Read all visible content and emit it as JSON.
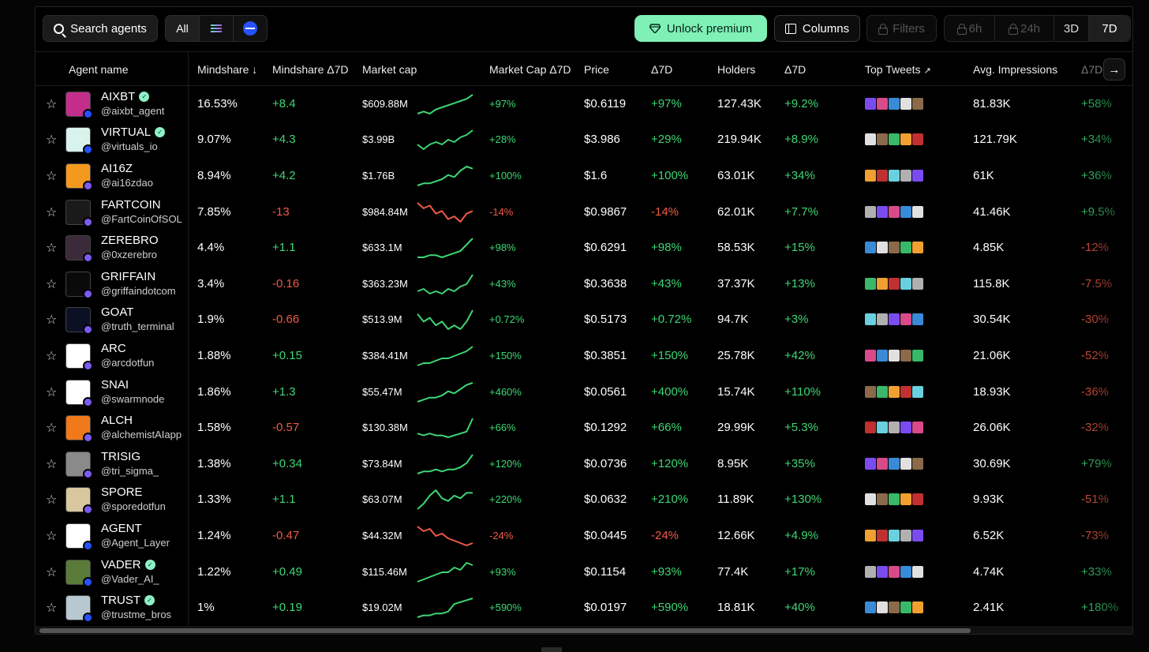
{
  "toolbar": {
    "search_label": "Search agents",
    "chain_all": "All",
    "premium_label": "Unlock premium",
    "columns_label": "Columns",
    "filters_label": "Filters",
    "time_ranges": [
      "6h",
      "24h",
      "3D",
      "7D"
    ],
    "active_range": "7D"
  },
  "columns": {
    "agent": "Agent name",
    "mindshare": "Mindshare",
    "mindshare_delta": "Mindshare Δ7D",
    "market_cap": "Market cap",
    "market_cap_delta": "Market Cap Δ7D",
    "price": "Price",
    "price_delta": "Δ7D",
    "holders": "Holders",
    "holders_delta": "Δ7D",
    "top_tweets": "Top Tweets",
    "impressions": "Avg. Impressions",
    "impressions_delta": "Δ7D"
  },
  "colors": {
    "positive": "#3ed674",
    "negative": "#ef5a48",
    "accent": "#7ff0b6"
  },
  "rows": [
    {
      "name": "AIXBT",
      "handle": "@aixbt_agent",
      "verified": true,
      "mindshare": "16.53%",
      "ms_delta": "+8.4",
      "mcap": "$609.88M",
      "mcap_delta": "+97%",
      "price": "$0.6119",
      "price_delta": "+97%",
      "holders": "127.43K",
      "holders_delta": "+9.2%",
      "impressions": "81.83K",
      "imp_delta": "+58%",
      "trend": [
        5,
        6,
        5,
        7,
        8,
        9,
        10,
        11,
        12,
        14
      ],
      "avatar": "#c22e8a",
      "chain": "#2752ff"
    },
    {
      "name": "VIRTUAL",
      "handle": "@virtuals_io",
      "verified": true,
      "mindshare": "9.07%",
      "ms_delta": "+4.3",
      "mcap": "$3.99B",
      "mcap_delta": "+28%",
      "price": "$3.986",
      "price_delta": "+29%",
      "holders": "219.94K",
      "holders_delta": "+8.9%",
      "impressions": "121.79K",
      "imp_delta": "+34%",
      "trend": [
        6,
        4,
        6,
        7,
        6,
        8,
        7,
        9,
        10,
        12
      ],
      "avatar": "#d8f2ec",
      "chain": "#2752ff"
    },
    {
      "name": "AI16Z",
      "handle": "@ai16zdao",
      "verified": false,
      "mindshare": "8.94%",
      "ms_delta": "+4.2",
      "mcap": "$1.76B",
      "mcap_delta": "+100%",
      "price": "$1.6",
      "price_delta": "+100%",
      "holders": "63.01K",
      "holders_delta": "+34%",
      "impressions": "61K",
      "imp_delta": "+36%",
      "trend": [
        4,
        5,
        5,
        6,
        7,
        9,
        8,
        11,
        13,
        12
      ],
      "avatar": "#f39a1e",
      "chain": "#7b5cf0"
    },
    {
      "name": "FARTCOIN",
      "handle": "@FartCoinOfSOL",
      "verified": false,
      "mindshare": "7.85%",
      "ms_delta": "-13",
      "mcap": "$984.84M",
      "mcap_delta": "-14%",
      "price": "$0.9867",
      "price_delta": "-14%",
      "holders": "62.01K",
      "holders_delta": "+7.7%",
      "impressions": "41.46K",
      "imp_delta": "+9.5%",
      "trend": [
        12,
        10,
        11,
        8,
        9,
        6,
        7,
        5,
        8,
        9
      ],
      "avatar": "#1a1a1a",
      "chain": "#7b5cf0"
    },
    {
      "name": "ZEREBRO",
      "handle": "@0xzerebro",
      "verified": false,
      "mindshare": "4.4%",
      "ms_delta": "+1.1",
      "mcap": "$633.1M",
      "mcap_delta": "+98%",
      "price": "$0.6291",
      "price_delta": "+98%",
      "holders": "58.53K",
      "holders_delta": "+15%",
      "impressions": "4.85K",
      "imp_delta": "-12%",
      "trend": [
        4,
        4,
        5,
        5,
        4,
        5,
        6,
        7,
        10,
        13
      ],
      "avatar": "#3a2a3a",
      "chain": "#7b5cf0"
    },
    {
      "name": "GRIFFAIN",
      "handle": "@griffaindotcom",
      "verified": false,
      "mindshare": "3.4%",
      "ms_delta": "-0.16",
      "mcap": "$363.23M",
      "mcap_delta": "+43%",
      "price": "$0.3638",
      "price_delta": "+43%",
      "holders": "37.37K",
      "holders_delta": "+13%",
      "impressions": "115.8K",
      "imp_delta": "-7.5%",
      "trend": [
        6,
        7,
        5,
        6,
        5,
        7,
        6,
        8,
        9,
        13
      ],
      "avatar": "#0a0a0a",
      "chain": "#7b5cf0"
    },
    {
      "name": "GOAT",
      "handle": "@truth_terminal",
      "verified": false,
      "mindshare": "1.9%",
      "ms_delta": "-0.66",
      "mcap": "$513.9M",
      "mcap_delta": "+0.72%",
      "price": "$0.5173",
      "price_delta": "+0.72%",
      "holders": "94.7K",
      "holders_delta": "+3%",
      "impressions": "30.54K",
      "imp_delta": "-30%",
      "trend": [
        11,
        9,
        10,
        8,
        9,
        7,
        8,
        7,
        9,
        12
      ],
      "avatar": "#0b1024",
      "chain": "#7b5cf0"
    },
    {
      "name": "ARC",
      "handle": "@arcdotfun",
      "verified": false,
      "mindshare": "1.88%",
      "ms_delta": "+0.15",
      "mcap": "$384.41M",
      "mcap_delta": "+150%",
      "price": "$0.3851",
      "price_delta": "+150%",
      "holders": "25.78K",
      "holders_delta": "+42%",
      "impressions": "21.06K",
      "imp_delta": "-52%",
      "trend": [
        5,
        6,
        6,
        7,
        8,
        8,
        9,
        10,
        11,
        13
      ],
      "avatar": "#ffffff",
      "chain": "#7b5cf0"
    },
    {
      "name": "SNAI",
      "handle": "@swarmnode",
      "verified": false,
      "mindshare": "1.86%",
      "ms_delta": "+1.3",
      "mcap": "$55.47M",
      "mcap_delta": "+460%",
      "price": "$0.0561",
      "price_delta": "+400%",
      "holders": "15.74K",
      "holders_delta": "+110%",
      "impressions": "18.93K",
      "imp_delta": "-36%",
      "trend": [
        4,
        5,
        6,
        6,
        7,
        9,
        8,
        10,
        12,
        13
      ],
      "avatar": "#ffffff",
      "chain": "#7b5cf0"
    },
    {
      "name": "ALCH",
      "handle": "@alchemistAIapp",
      "verified": false,
      "mindshare": "1.58%",
      "ms_delta": "-0.57",
      "mcap": "$130.38M",
      "mcap_delta": "+66%",
      "price": "$0.1292",
      "price_delta": "+66%",
      "holders": "29.99K",
      "holders_delta": "+5.3%",
      "impressions": "26.06K",
      "imp_delta": "-32%",
      "trend": [
        6,
        5,
        6,
        5,
        5,
        4,
        5,
        6,
        7,
        14
      ],
      "avatar": "#f07a1a",
      "chain": "#7b5cf0"
    },
    {
      "name": "TRISIG",
      "handle": "@tri_sigma_",
      "verified": false,
      "mindshare": "1.38%",
      "ms_delta": "+0.34",
      "mcap": "$73.84M",
      "mcap_delta": "+120%",
      "price": "$0.0736",
      "price_delta": "+120%",
      "holders": "8.95K",
      "holders_delta": "+35%",
      "impressions": "30.69K",
      "imp_delta": "+79%",
      "trend": [
        5,
        6,
        6,
        7,
        6,
        7,
        7,
        8,
        10,
        14
      ],
      "avatar": "#8a8a8a",
      "chain": "#7b5cf0"
    },
    {
      "name": "SPORE",
      "handle": "@sporedotfun",
      "verified": false,
      "mindshare": "1.33%",
      "ms_delta": "+1.1",
      "mcap": "$63.07M",
      "mcap_delta": "+220%",
      "price": "$0.0632",
      "price_delta": "+210%",
      "holders": "11.89K",
      "holders_delta": "+130%",
      "impressions": "9.93K",
      "imp_delta": "-51%",
      "trend": [
        5,
        7,
        10,
        12,
        9,
        8,
        10,
        9,
        11,
        11
      ],
      "avatar": "#d9c7a0",
      "chain": "#7b5cf0"
    },
    {
      "name": "AGENT",
      "handle": "@Agent_Layer",
      "verified": false,
      "mindshare": "1.24%",
      "ms_delta": "-0.47",
      "mcap": "$44.32M",
      "mcap_delta": "-24%",
      "price": "$0.0445",
      "price_delta": "-24%",
      "holders": "12.66K",
      "holders_delta": "+4.9%",
      "impressions": "6.52K",
      "imp_delta": "-73%",
      "trend": [
        13,
        11,
        12,
        9,
        10,
        8,
        7,
        6,
        5,
        6
      ],
      "avatar": "#ffffff",
      "chain": "#2752ff"
    },
    {
      "name": "VADER",
      "handle": "@Vader_AI_",
      "verified": true,
      "mindshare": "1.22%",
      "ms_delta": "+0.49",
      "mcap": "$115.46M",
      "mcap_delta": "+93%",
      "price": "$0.1154",
      "price_delta": "+93%",
      "holders": "77.4K",
      "holders_delta": "+17%",
      "impressions": "4.74K",
      "imp_delta": "+33%",
      "trend": [
        5,
        6,
        7,
        8,
        9,
        9,
        11,
        10,
        13,
        12
      ],
      "avatar": "#5a7a3a",
      "chain": "#2752ff"
    },
    {
      "name": "TRUST",
      "handle": "@trustme_bros",
      "verified": true,
      "mindshare": "1%",
      "ms_delta": "+0.19",
      "mcap": "$19.02M",
      "mcap_delta": "+590%",
      "price": "$0.0197",
      "price_delta": "+590%",
      "holders": "18.81K",
      "holders_delta": "+40%",
      "impressions": "2.41K",
      "imp_delta": "+180%",
      "trend": [
        3,
        4,
        4,
        5,
        5,
        6,
        10,
        11,
        12,
        13
      ],
      "avatar": "#b8c8d0",
      "chain": "#2752ff"
    }
  ]
}
